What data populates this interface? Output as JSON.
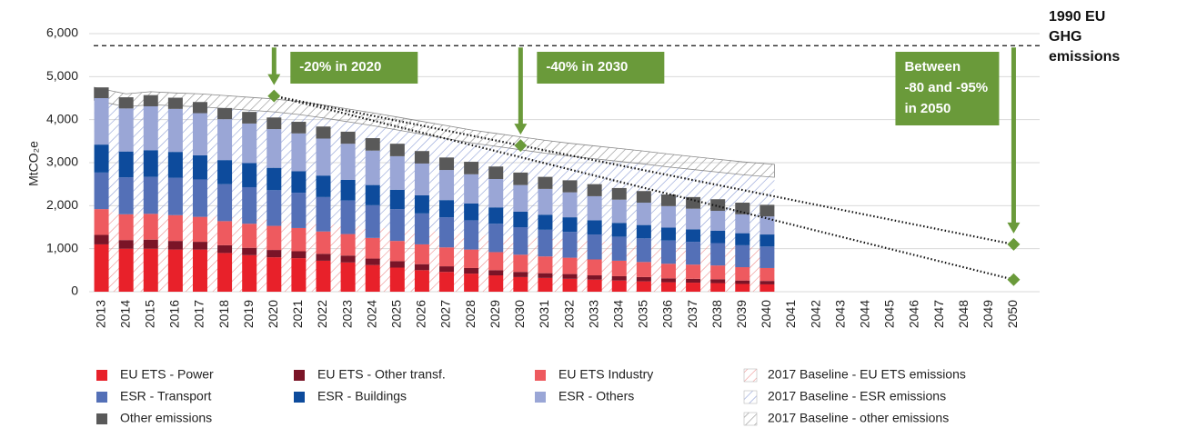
{
  "chart_data": {
    "type": "stacked_bar",
    "y_label": "MtCO₂e",
    "categories": [
      2013,
      2014,
      2015,
      2016,
      2017,
      2018,
      2019,
      2020,
      2021,
      2022,
      2023,
      2024,
      2025,
      2026,
      2027,
      2028,
      2029,
      2030,
      2031,
      2032,
      2033,
      2034,
      2035,
      2036,
      2037,
      2038,
      2039,
      2040,
      2041,
      2042,
      2043,
      2044,
      2045,
      2046,
      2047,
      2048,
      2049,
      2050
    ],
    "ylim": [
      0,
      6000
    ],
    "yticks": [
      0,
      {
        "value": 1000,
        "label": "1,000"
      },
      {
        "value": 2000,
        "label": "2,000"
      },
      {
        "value": 3000,
        "label": "3,000"
      },
      {
        "value": 4000,
        "label": "4,000"
      },
      {
        "value": 5000,
        "label": "5,000"
      },
      {
        "value": 6000,
        "label": "6,000"
      }
    ],
    "grid": true,
    "series": [
      {
        "name": "EU ETS - Power",
        "color": "#e8212a",
        "values": [
          1100,
          1000,
          1000,
          980,
          980,
          900,
          850,
          800,
          780,
          720,
          680,
          620,
          560,
          500,
          460,
          420,
          380,
          340,
          320,
          300,
          280,
          260,
          240,
          220,
          210,
          200,
          180,
          170,
          null,
          null,
          null,
          null,
          null,
          null,
          null,
          null,
          null,
          null
        ]
      },
      {
        "name": "EU ETS - Other transf.",
        "color": "#7a1427",
        "values": [
          220,
          200,
          210,
          200,
          180,
          180,
          170,
          170,
          160,
          160,
          160,
          150,
          150,
          140,
          130,
          130,
          120,
          120,
          110,
          110,
          100,
          100,
          100,
          90,
          90,
          90,
          80,
          80,
          null,
          null,
          null,
          null,
          null,
          null,
          null,
          null,
          null,
          null
        ]
      },
      {
        "name": "EU ETS  Industry",
        "color": "#ee5a5f",
        "values": [
          600,
          600,
          600,
          600,
          580,
          560,
          560,
          560,
          540,
          520,
          500,
          480,
          470,
          460,
          440,
          430,
          420,
          400,
          390,
          380,
          370,
          360,
          350,
          340,
          330,
          320,
          310,
          300,
          null,
          null,
          null,
          null,
          null,
          null,
          null,
          null,
          null,
          null
        ]
      },
      {
        "name": "ESR - Transport",
        "color": "#5470b7",
        "values": [
          850,
          860,
          860,
          870,
          870,
          860,
          850,
          830,
          820,
          800,
          780,
          760,
          740,
          720,
          700,
          680,
          660,
          640,
          620,
          600,
          580,
          560,
          550,
          540,
          530,
          520,
          510,
          500,
          null,
          null,
          null,
          null,
          null,
          null,
          null,
          null,
          null,
          null
        ]
      },
      {
        "name": "ESR - Buildings",
        "color": "#0d4b9c",
        "values": [
          650,
          600,
          620,
          600,
          560,
          560,
          560,
          520,
          500,
          500,
          480,
          470,
          450,
          420,
          400,
          390,
          380,
          360,
          350,
          340,
          330,
          320,
          310,
          300,
          290,
          290,
          280,
          280,
          null,
          null,
          null,
          null,
          null,
          null,
          null,
          null,
          null,
          null
        ]
      },
      {
        "name": "ESR - Others",
        "color": "#9aa6d6",
        "values": [
          1080,
          1000,
          1020,
          1000,
          980,
          950,
          920,
          900,
          880,
          860,
          840,
          800,
          780,
          740,
          700,
          680,
          660,
          620,
          600,
          580,
          560,
          540,
          520,
          500,
          480,
          460,
          440,
          420,
          null,
          null,
          null,
          null,
          null,
          null,
          null,
          null,
          null,
          null
        ]
      },
      {
        "name": "Other emissions",
        "color": "#595959",
        "values": [
          250,
          260,
          260,
          260,
          260,
          260,
          270,
          270,
          270,
          280,
          280,
          290,
          290,
          290,
          290,
          290,
          290,
          290,
          280,
          280,
          280,
          270,
          270,
          270,
          270,
          270,
          270,
          270,
          null,
          null,
          null,
          null,
          null,
          null,
          null,
          null,
          null,
          null
        ]
      }
    ],
    "baseline_series": [
      {
        "name": "2017 Baseline - EU ETS emissions",
        "color": "#ee8f8f",
        "values": [
          1900,
          1820,
          1800,
          1780,
          1760,
          1740,
          1700,
          1660,
          1620,
          1580,
          1540,
          1500,
          1460,
          1420,
          1380,
          1340,
          1300,
          1270,
          1240,
          1210,
          1180,
          1150,
          1120,
          1100,
          1080,
          1060,
          1040,
          1020,
          null,
          null,
          null,
          null,
          null,
          null,
          null,
          null,
          null,
          null
        ]
      },
      {
        "name": "2017 Baseline - ESR emissions",
        "color": "#8e9fd6",
        "values": [
          2550,
          2480,
          2550,
          2540,
          2540,
          2520,
          2520,
          2520,
          2500,
          2460,
          2410,
          2360,
          2300,
          2240,
          2180,
          2120,
          2080,
          2030,
          1980,
          1940,
          1910,
          1880,
          1850,
          1800,
          1760,
          1720,
          1680,
          1640,
          null,
          null,
          null,
          null,
          null,
          null,
          null,
          null,
          null,
          null
        ]
      },
      {
        "name": "2017 Baseline - other emissions",
        "color": "#8c8c8c",
        "values": [
          300,
          300,
          300,
          300,
          300,
          300,
          300,
          300,
          300,
          300,
          300,
          300,
          300,
          300,
          300,
          300,
          300,
          300,
          300,
          300,
          300,
          300,
          300,
          300,
          300,
          300,
          300,
          300,
          null,
          null,
          null,
          null,
          null,
          null,
          null,
          null,
          null,
          null
        ]
      }
    ],
    "reference_line": {
      "value": 5720,
      "label": [
        "1990 EU",
        "GHG",
        "emissions"
      ]
    },
    "target_color": "#6a9a3a",
    "targets": [
      {
        "x": 2020,
        "value": 4550
      },
      {
        "x": 2030,
        "value": 3400
      },
      {
        "x": 2050,
        "value": 1100
      },
      {
        "x": 2050,
        "value": 280
      }
    ],
    "annotations": [
      {
        "x": 2020,
        "lines": [
          "-20% in 2020"
        ]
      },
      {
        "x": 2030,
        "lines": [
          "-40% in 2030"
        ]
      },
      {
        "x": 2050,
        "lines": [
          "Between",
          "-80 and -95%",
          "in 2050"
        ]
      }
    ]
  }
}
